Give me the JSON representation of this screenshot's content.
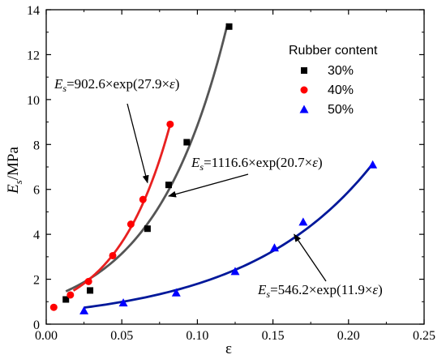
{
  "chart_data": {
    "type": "scatter",
    "xlabel": "ε",
    "ylabel_main": "E",
    "ylabel_sub": "s",
    "ylabel_unit": "/MPa",
    "xlim": [
      0,
      0.25
    ],
    "ylim": [
      0,
      14
    ],
    "x_ticks": [
      "0.00",
      "0.05",
      "0.10",
      "0.15",
      "0.20",
      "0.25"
    ],
    "y_ticks": [
      "0",
      "2",
      "4",
      "6",
      "8",
      "10",
      "12",
      "14"
    ],
    "grid": false,
    "legend": {
      "title": "Rubber content",
      "placement": "top-right",
      "entries": [
        "30%",
        "40%",
        "50%"
      ]
    },
    "series": [
      {
        "name": "30%",
        "marker": "square",
        "color": "#000000",
        "curve_color": "#555555",
        "points": [
          [
            0.013,
            1.1
          ],
          [
            0.029,
            1.5
          ],
          [
            0.067,
            4.25
          ],
          [
            0.081,
            6.2
          ],
          [
            0.093,
            8.1
          ],
          [
            0.121,
            13.25
          ]
        ],
        "fit": {
          "a": 1116.6,
          "b": 20.7,
          "x_range": [
            0.013,
            0.12
          ]
        }
      },
      {
        "name": "40%",
        "marker": "circle",
        "color": "#ff0000",
        "curve_color": "#e82020",
        "points": [
          [
            0.005,
            0.75
          ],
          [
            0.016,
            1.3
          ],
          [
            0.028,
            1.9
          ],
          [
            0.044,
            3.05
          ],
          [
            0.056,
            4.45
          ],
          [
            0.064,
            5.55
          ],
          [
            0.082,
            8.9
          ]
        ],
        "fit": {
          "a": 902.6,
          "b": 27.9,
          "x_range": [
            0.018,
            0.082
          ]
        }
      },
      {
        "name": "50%",
        "marker": "triangle",
        "color": "#0000ff",
        "curve_color": "#00189a",
        "points": [
          [
            0.025,
            0.6
          ],
          [
            0.051,
            0.95
          ],
          [
            0.086,
            1.4
          ],
          [
            0.125,
            2.35
          ],
          [
            0.151,
            3.4
          ],
          [
            0.17,
            4.55
          ],
          [
            0.216,
            7.1
          ]
        ],
        "fit": {
          "a": 546.2,
          "b": 11.9,
          "x_range": [
            0.025,
            0.216
          ]
        }
      }
    ],
    "annotations": [
      {
        "main": "E",
        "sub": "s",
        "rest": "=902.6×exp(27.9×",
        "var": "ε",
        "close": ")",
        "arrow_to": [
          0.067,
          6.3
        ]
      },
      {
        "main": "E",
        "sub": "s",
        "rest": "=1116.6×exp(20.7×",
        "var": "ε",
        "close": ")",
        "arrow_to": [
          0.081,
          5.7
        ]
      },
      {
        "main": "E",
        "sub": "s",
        "rest": "=546.2×exp(11.9×",
        "var": "ε",
        "close": ")",
        "arrow_to": [
          0.164,
          4.0
        ]
      }
    ]
  }
}
